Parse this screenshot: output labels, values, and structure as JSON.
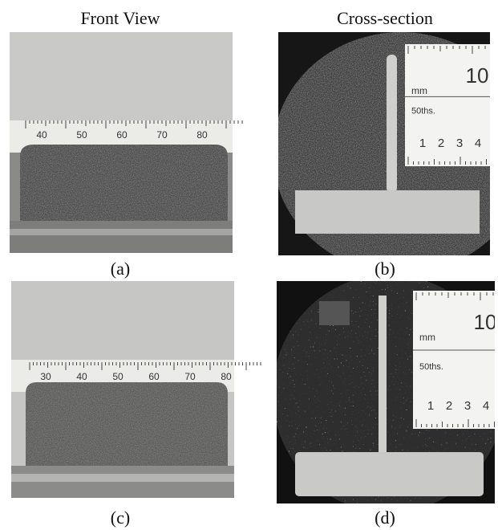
{
  "headers": [
    "Front View",
    "Cross-section"
  ],
  "panels": [
    {
      "label": "(a)",
      "ruler": [
        "40",
        "50",
        "60",
        "70",
        "80"
      ]
    },
    {
      "label": "(b)",
      "ruler": [
        "10",
        "mm",
        "50ths.",
        "1",
        "2",
        "3",
        "4"
      ]
    },
    {
      "label": "(c)",
      "ruler": [
        "30",
        "40",
        "50",
        "60",
        "70",
        "80"
      ]
    },
    {
      "label": "(d)",
      "ruler": [
        "10",
        "mm",
        "50ths.",
        "1",
        "2",
        "3",
        "4"
      ]
    }
  ]
}
